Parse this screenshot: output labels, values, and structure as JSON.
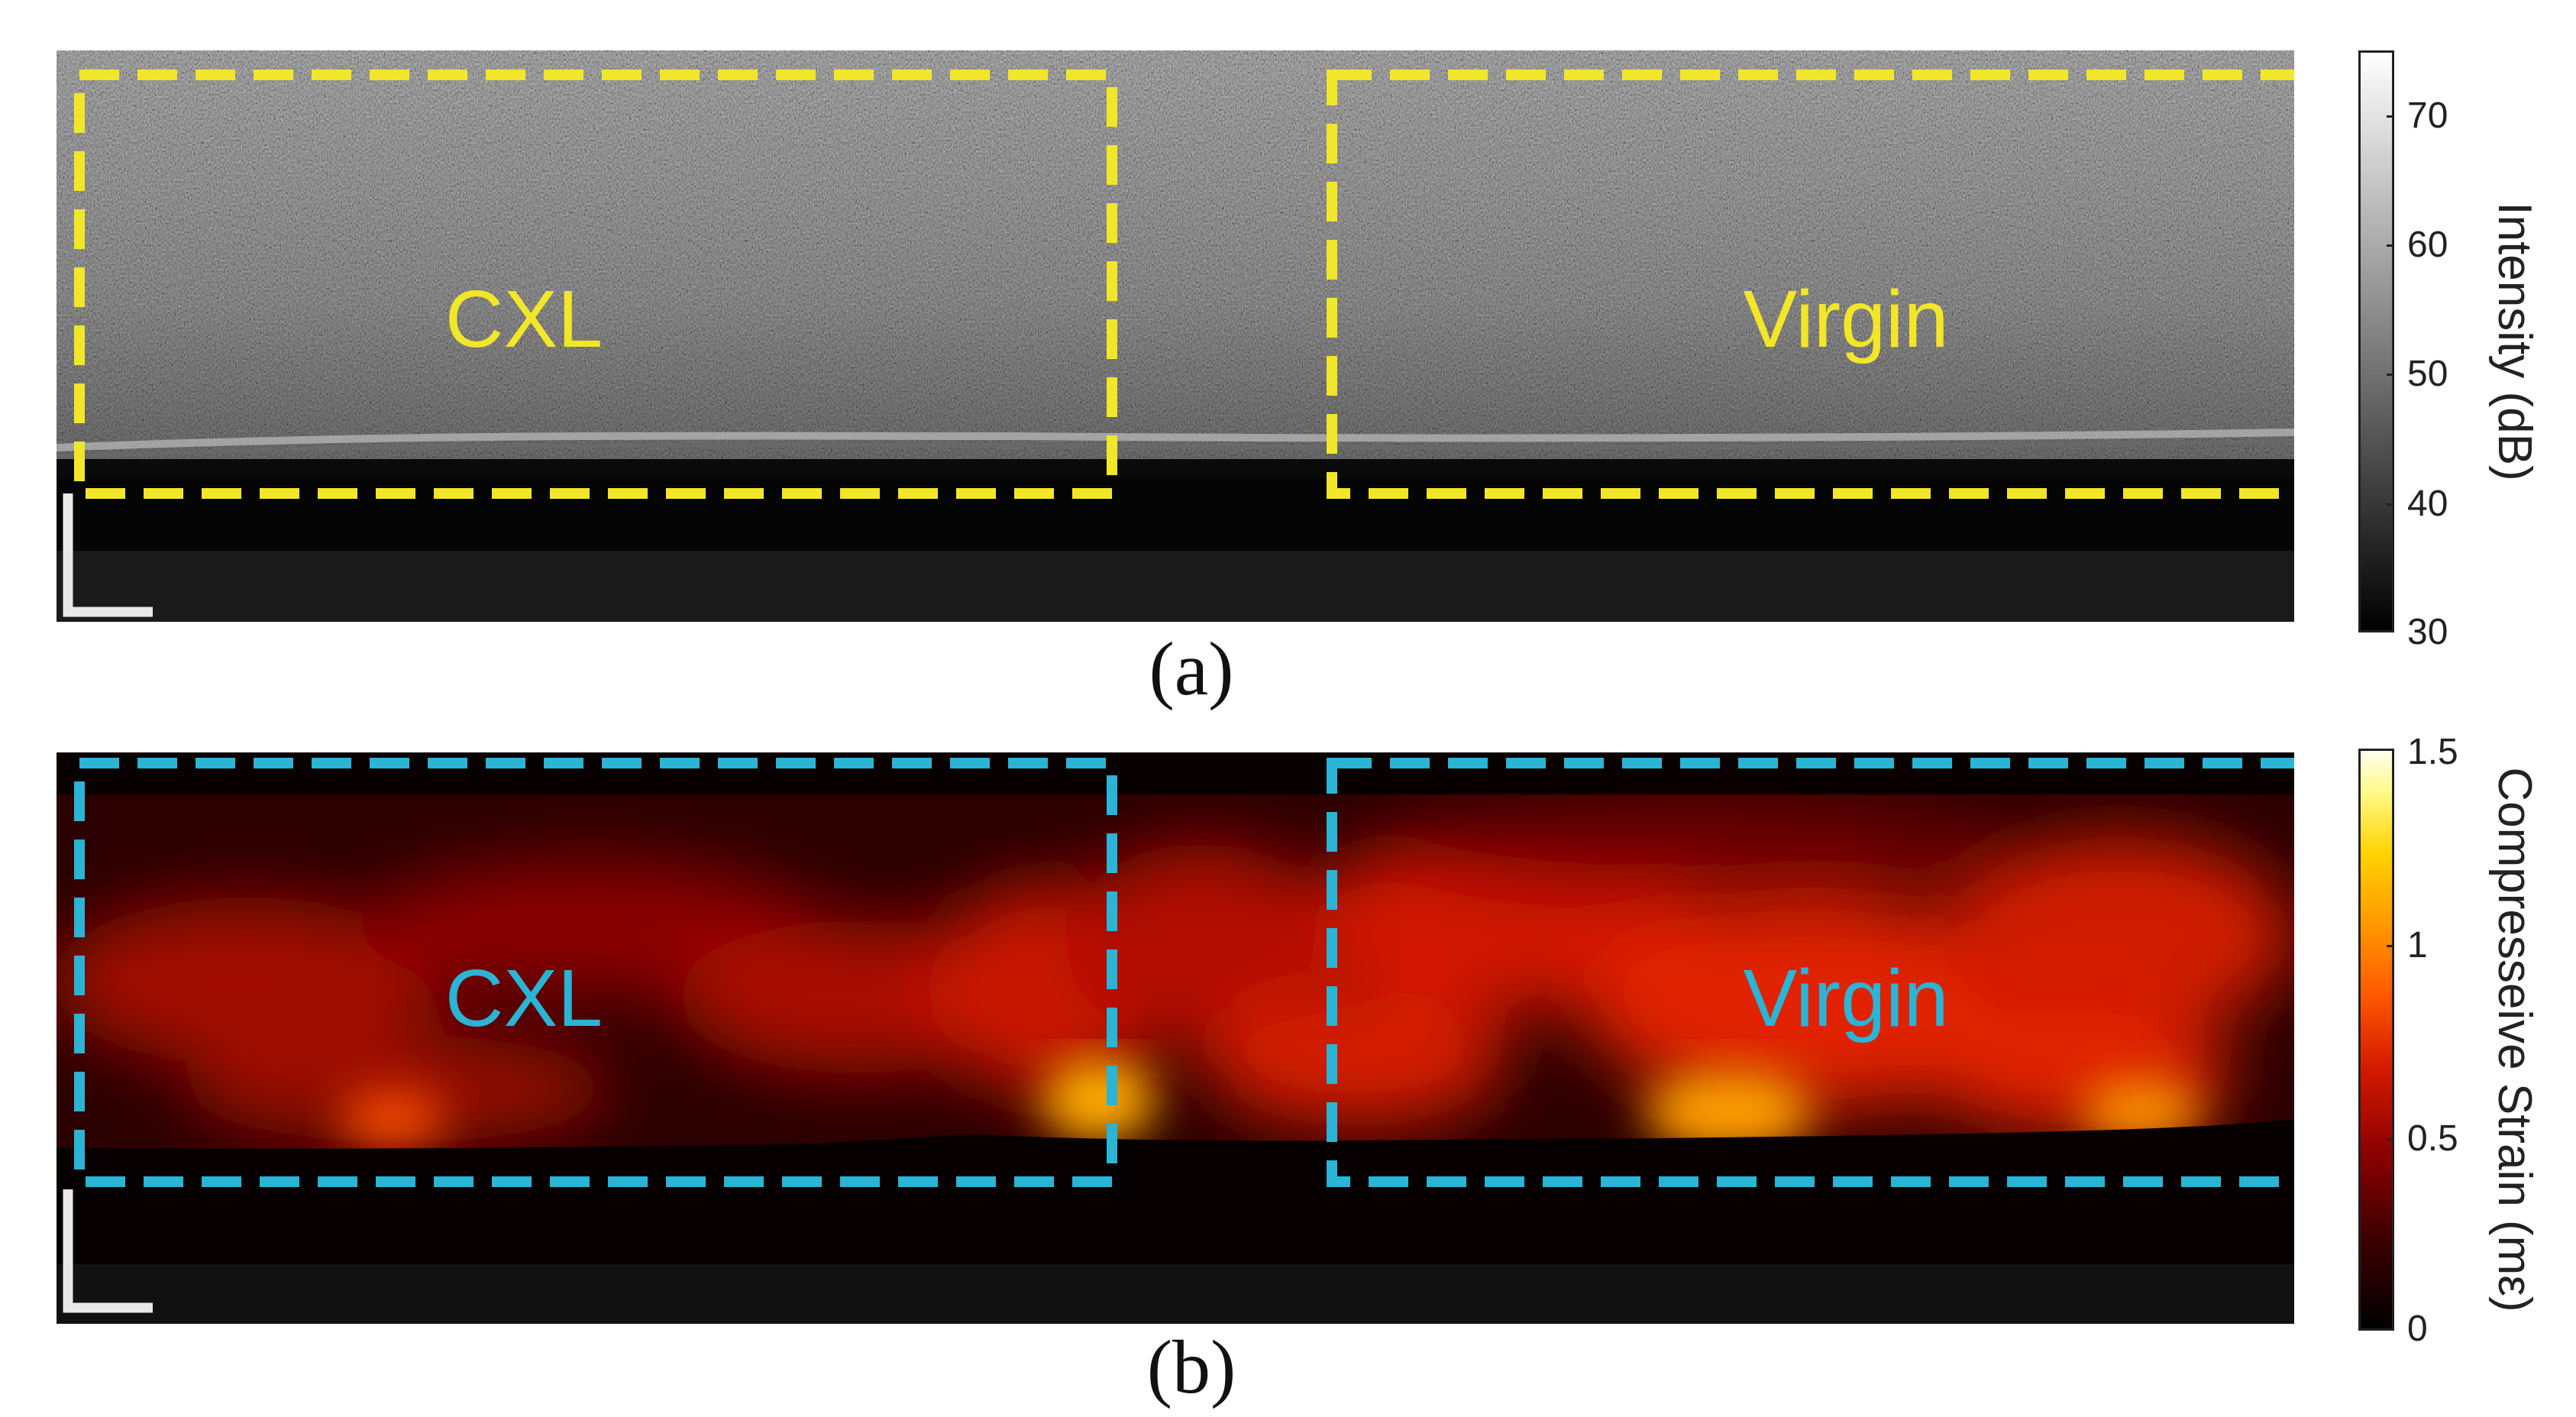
{
  "panel_a": {
    "caption": "(a)",
    "roi_labels": [
      "CXL",
      "Virgin"
    ],
    "roi_color": "#f2e629",
    "colorbar": {
      "title": "Intensity (dB)",
      "ticks": [
        "70",
        "60",
        "50",
        "40",
        "30"
      ],
      "tick_values": [
        70,
        60,
        50,
        40,
        30
      ],
      "range": [
        30,
        75
      ],
      "colormap": "gray"
    }
  },
  "panel_b": {
    "caption": "(b)",
    "roi_labels": [
      "CXL",
      "Virgin"
    ],
    "roi_color": "#2ab4d6",
    "colorbar": {
      "title": "Compresseive Strain (mε)",
      "ticks": [
        "1.5",
        "1",
        "0.5",
        "0"
      ],
      "tick_values": [
        1.5,
        1,
        0.5,
        0
      ],
      "range": [
        0,
        1.5
      ],
      "colormap": "hot"
    }
  },
  "icons": {
    "scale_bar": "scale-bar-icon"
  }
}
